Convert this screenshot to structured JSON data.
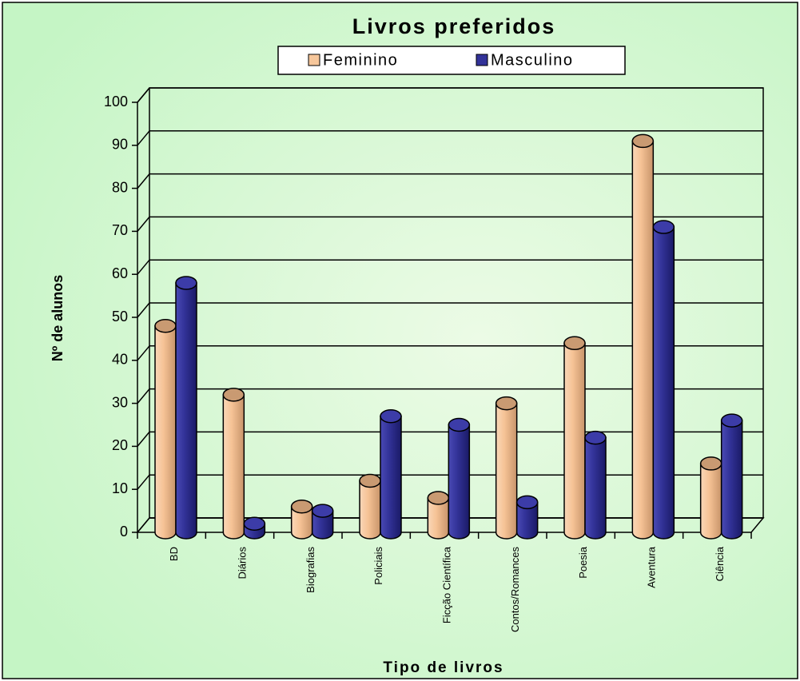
{
  "chart_data": {
    "type": "bar3d",
    "title": "Livros preferidos",
    "x_label": "Tipo de livros",
    "y_label": "Nº de alunos",
    "categories": [
      "BD",
      "Diários",
      "Biografias",
      "Policiais",
      "Ficção Científica",
      "Contos/Romances",
      "Poesia",
      "Aventura",
      "Ciência"
    ],
    "series": [
      {
        "name": "Feminino",
        "color": "#f7c79b",
        "values": [
          48,
          32,
          6,
          12,
          8,
          30,
          44,
          91,
          16
        ]
      },
      {
        "name": "Masculino",
        "color": "#333399",
        "values": [
          58,
          2,
          5,
          27,
          25,
          7,
          22,
          71,
          26
        ]
      }
    ],
    "ylim": [
      0,
      100
    ],
    "yticks": [
      0,
      10,
      20,
      30,
      40,
      50,
      60,
      70,
      80,
      90,
      100
    ],
    "grid": true,
    "legend": "top"
  }
}
